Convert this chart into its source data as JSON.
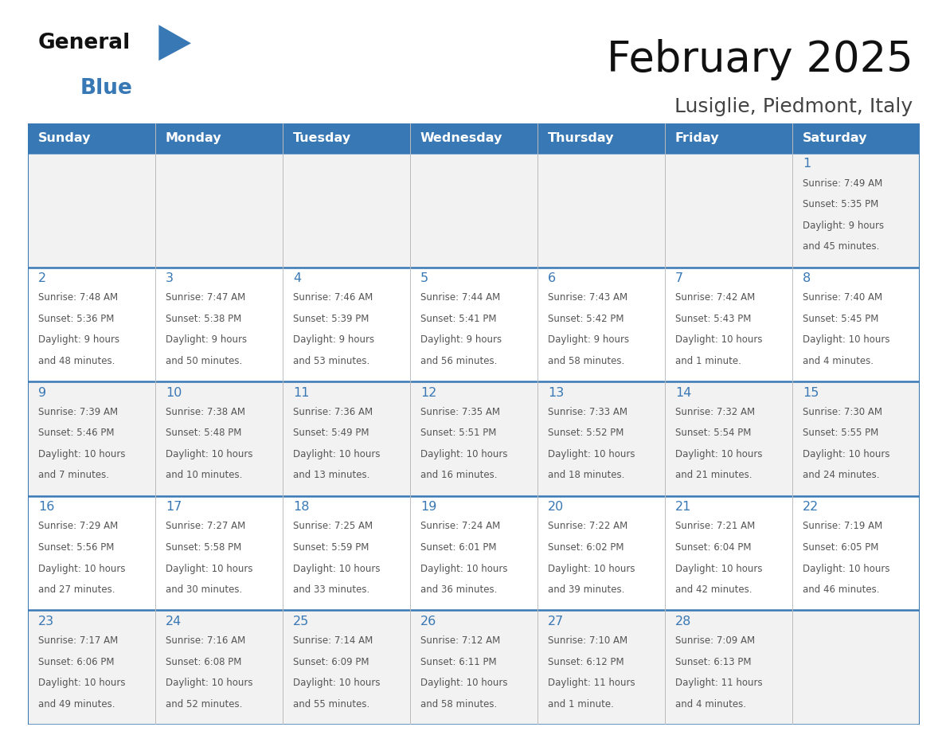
{
  "title": "February 2025",
  "subtitle": "Lusiglie, Piedmont, Italy",
  "header_color": "#3878b4",
  "header_text_color": "#ffffff",
  "day_names": [
    "Sunday",
    "Monday",
    "Tuesday",
    "Wednesday",
    "Thursday",
    "Friday",
    "Saturday"
  ],
  "background_color": "#ffffff",
  "cell_bg_row0": "#f2f2f2",
  "cell_bg_row1": "#ffffff",
  "cell_bg_row2": "#f2f2f2",
  "cell_bg_row3": "#ffffff",
  "cell_bg_row4": "#f2f2f2",
  "row_line_color": "#3878b4",
  "col_line_color": "#bbbbbb",
  "day_num_color": "#3878b4",
  "info_color": "#555555",
  "logo_general_color": "#111111",
  "logo_blue_color": "#3878b4",
  "logo_triangle_color": "#3878b4",
  "weeks": [
    [
      null,
      null,
      null,
      null,
      null,
      null,
      1
    ],
    [
      2,
      3,
      4,
      5,
      6,
      7,
      8
    ],
    [
      9,
      10,
      11,
      12,
      13,
      14,
      15
    ],
    [
      16,
      17,
      18,
      19,
      20,
      21,
      22
    ],
    [
      23,
      24,
      25,
      26,
      27,
      28,
      null
    ]
  ],
  "day_data": {
    "1": {
      "sunrise": "7:49 AM",
      "sunset": "5:35 PM",
      "daylight": "9 hours and 45 minutes."
    },
    "2": {
      "sunrise": "7:48 AM",
      "sunset": "5:36 PM",
      "daylight": "9 hours and 48 minutes."
    },
    "3": {
      "sunrise": "7:47 AM",
      "sunset": "5:38 PM",
      "daylight": "9 hours and 50 minutes."
    },
    "4": {
      "sunrise": "7:46 AM",
      "sunset": "5:39 PM",
      "daylight": "9 hours and 53 minutes."
    },
    "5": {
      "sunrise": "7:44 AM",
      "sunset": "5:41 PM",
      "daylight": "9 hours and 56 minutes."
    },
    "6": {
      "sunrise": "7:43 AM",
      "sunset": "5:42 PM",
      "daylight": "9 hours and 58 minutes."
    },
    "7": {
      "sunrise": "7:42 AM",
      "sunset": "5:43 PM",
      "daylight": "10 hours and 1 minute."
    },
    "8": {
      "sunrise": "7:40 AM",
      "sunset": "5:45 PM",
      "daylight": "10 hours and 4 minutes."
    },
    "9": {
      "sunrise": "7:39 AM",
      "sunset": "5:46 PM",
      "daylight": "10 hours and 7 minutes."
    },
    "10": {
      "sunrise": "7:38 AM",
      "sunset": "5:48 PM",
      "daylight": "10 hours and 10 minutes."
    },
    "11": {
      "sunrise": "7:36 AM",
      "sunset": "5:49 PM",
      "daylight": "10 hours and 13 minutes."
    },
    "12": {
      "sunrise": "7:35 AM",
      "sunset": "5:51 PM",
      "daylight": "10 hours and 16 minutes."
    },
    "13": {
      "sunrise": "7:33 AM",
      "sunset": "5:52 PM",
      "daylight": "10 hours and 18 minutes."
    },
    "14": {
      "sunrise": "7:32 AM",
      "sunset": "5:54 PM",
      "daylight": "10 hours and 21 minutes."
    },
    "15": {
      "sunrise": "7:30 AM",
      "sunset": "5:55 PM",
      "daylight": "10 hours and 24 minutes."
    },
    "16": {
      "sunrise": "7:29 AM",
      "sunset": "5:56 PM",
      "daylight": "10 hours and 27 minutes."
    },
    "17": {
      "sunrise": "7:27 AM",
      "sunset": "5:58 PM",
      "daylight": "10 hours and 30 minutes."
    },
    "18": {
      "sunrise": "7:25 AM",
      "sunset": "5:59 PM",
      "daylight": "10 hours and 33 minutes."
    },
    "19": {
      "sunrise": "7:24 AM",
      "sunset": "6:01 PM",
      "daylight": "10 hours and 36 minutes."
    },
    "20": {
      "sunrise": "7:22 AM",
      "sunset": "6:02 PM",
      "daylight": "10 hours and 39 minutes."
    },
    "21": {
      "sunrise": "7:21 AM",
      "sunset": "6:04 PM",
      "daylight": "10 hours and 42 minutes."
    },
    "22": {
      "sunrise": "7:19 AM",
      "sunset": "6:05 PM",
      "daylight": "10 hours and 46 minutes."
    },
    "23": {
      "sunrise": "7:17 AM",
      "sunset": "6:06 PM",
      "daylight": "10 hours and 49 minutes."
    },
    "24": {
      "sunrise": "7:16 AM",
      "sunset": "6:08 PM",
      "daylight": "10 hours and 52 minutes."
    },
    "25": {
      "sunrise": "7:14 AM",
      "sunset": "6:09 PM",
      "daylight": "10 hours and 55 minutes."
    },
    "26": {
      "sunrise": "7:12 AM",
      "sunset": "6:11 PM",
      "daylight": "10 hours and 58 minutes."
    },
    "27": {
      "sunrise": "7:10 AM",
      "sunset": "6:12 PM",
      "daylight": "11 hours and 1 minute."
    },
    "28": {
      "sunrise": "7:09 AM",
      "sunset": "6:13 PM",
      "daylight": "11 hours and 4 minutes."
    }
  }
}
